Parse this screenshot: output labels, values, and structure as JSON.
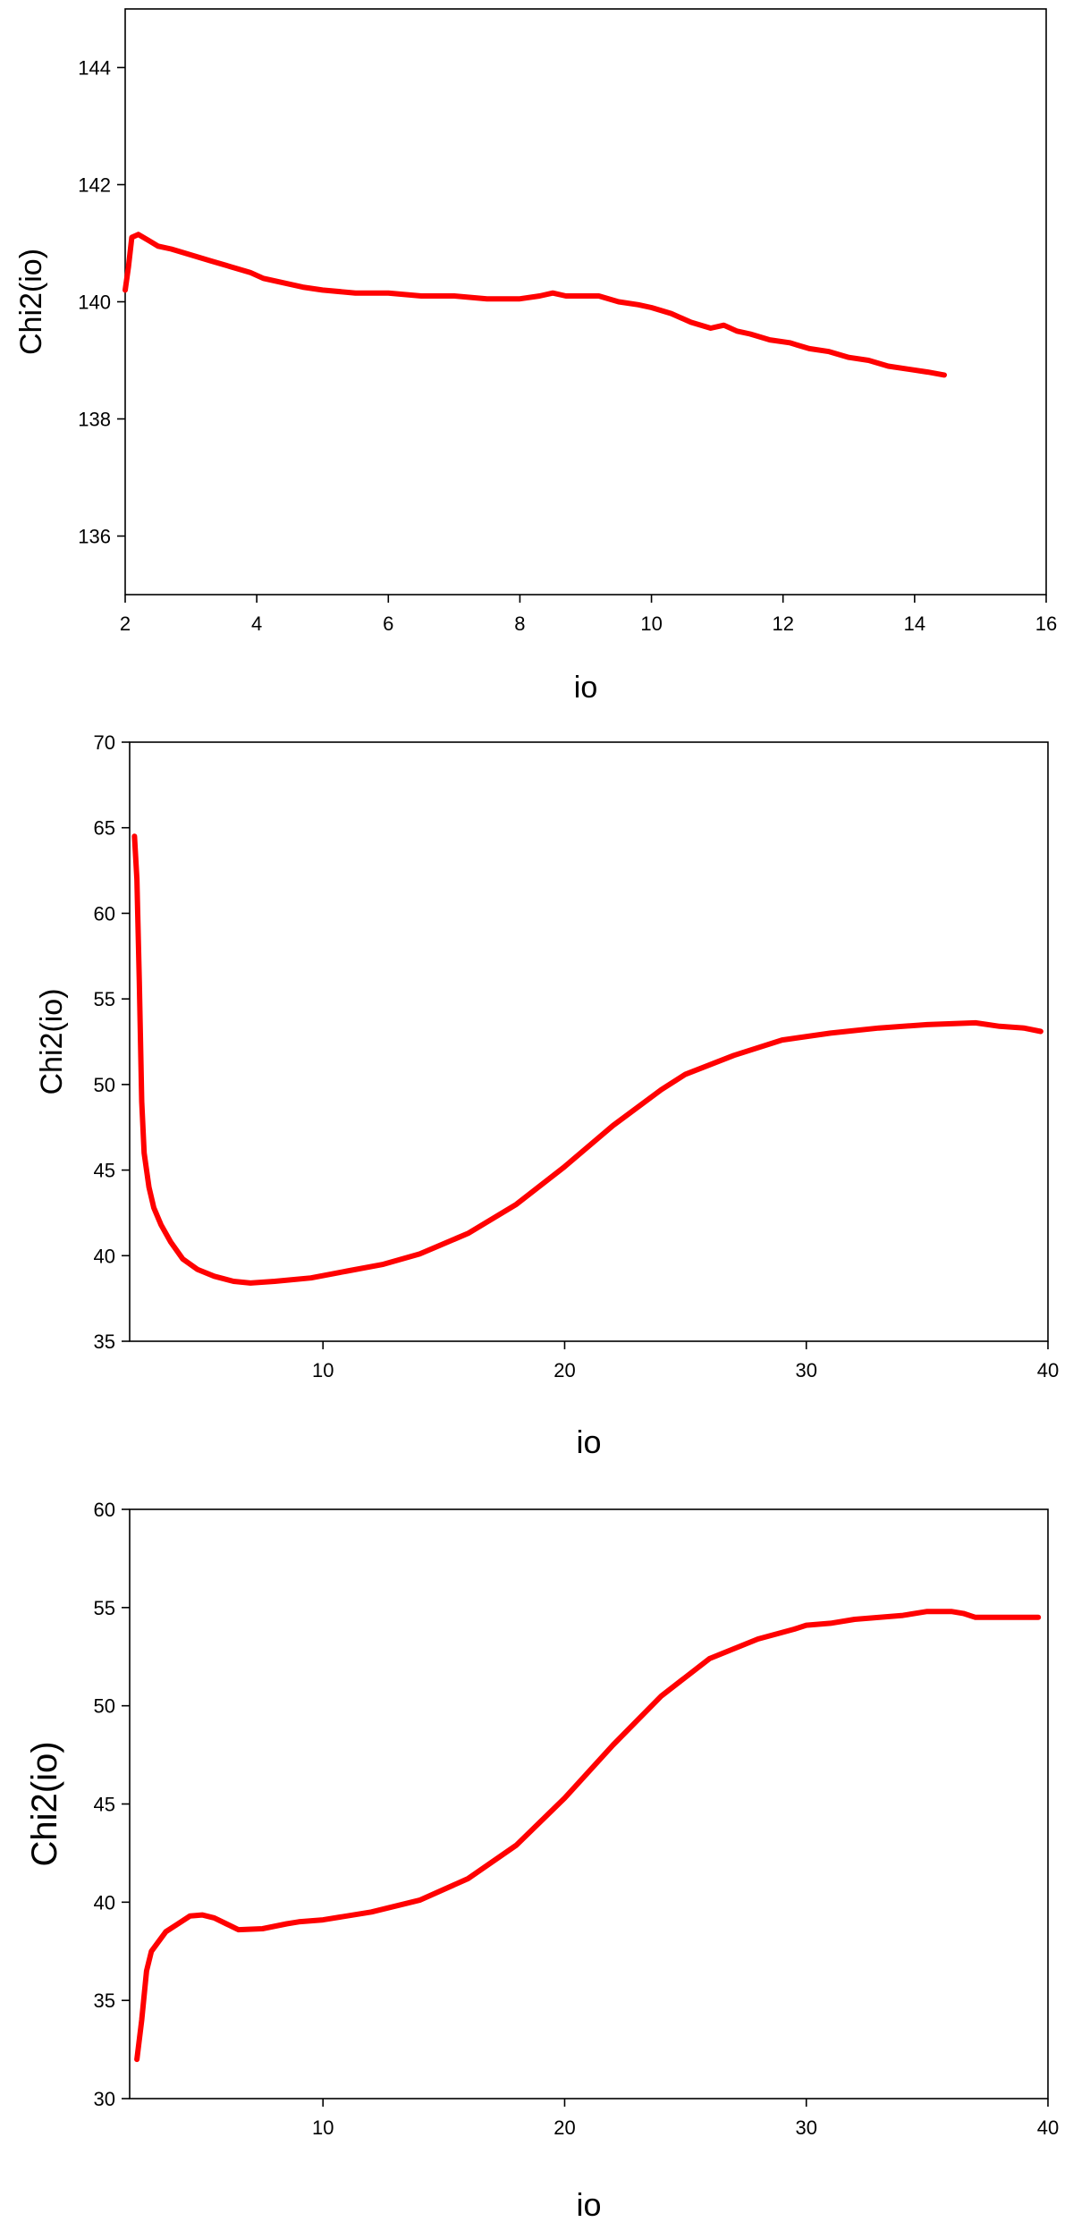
{
  "chart_data": [
    {
      "type": "line",
      "xlabel": "io",
      "ylabel": "Chi2(io)",
      "xlim": [
        2,
        16
      ],
      "ylim": [
        135,
        145
      ],
      "xticks": [
        2,
        4,
        6,
        8,
        10,
        12,
        14,
        16
      ],
      "yticks": [
        136,
        138,
        140,
        142,
        144
      ],
      "grid": false,
      "line_color": "#ff0000",
      "series": [
        {
          "x": [
            2.0,
            2.05,
            2.1,
            2.2,
            2.35,
            2.5,
            2.7,
            3.0,
            3.3,
            3.6,
            3.9,
            4.1,
            4.3,
            4.5,
            4.7,
            5.0,
            5.5,
            6.0,
            6.5,
            7.0,
            7.5,
            8.0,
            8.3,
            8.5,
            8.7,
            9.0,
            9.2,
            9.5,
            9.8,
            10.0,
            10.3,
            10.6,
            10.9,
            11.1,
            11.3,
            11.5,
            11.8,
            12.1,
            12.4,
            12.7,
            13.0,
            13.3,
            13.6,
            13.9,
            14.2,
            14.45
          ],
          "y": [
            140.2,
            140.6,
            141.1,
            141.15,
            141.05,
            140.95,
            140.9,
            140.8,
            140.7,
            140.6,
            140.5,
            140.4,
            140.35,
            140.3,
            140.25,
            140.2,
            140.15,
            140.15,
            140.1,
            140.1,
            140.05,
            140.05,
            140.1,
            140.15,
            140.1,
            140.1,
            140.1,
            140.0,
            139.95,
            139.9,
            139.8,
            139.65,
            139.55,
            139.6,
            139.5,
            139.45,
            139.35,
            139.3,
            139.2,
            139.15,
            139.05,
            139.0,
            138.9,
            138.85,
            138.8,
            138.75
          ]
        }
      ]
    },
    {
      "type": "line",
      "xlabel": "io",
      "ylabel": "Chi2(io)",
      "xlim": [
        2,
        40
      ],
      "ylim": [
        35,
        70
      ],
      "xticks": [
        10,
        20,
        30,
        40
      ],
      "yticks": [
        35,
        40,
        45,
        50,
        55,
        60,
        65,
        70
      ],
      "grid": false,
      "line_color": "#ff0000",
      "series": [
        {
          "x": [
            2.2,
            2.3,
            2.4,
            2.5,
            2.6,
            2.8,
            3.0,
            3.3,
            3.7,
            4.2,
            4.8,
            5.5,
            6.3,
            7.0,
            8.0,
            9.5,
            11.0,
            12.5,
            14.0,
            16.0,
            18.0,
            20.0,
            22.0,
            24.0,
            25.0,
            27.0,
            29.0,
            31.0,
            33.0,
            35.0,
            37.0,
            38.0,
            39.0,
            39.7
          ],
          "y": [
            64.5,
            62.0,
            56.0,
            49.0,
            46.0,
            44.0,
            42.8,
            41.8,
            40.8,
            39.8,
            39.2,
            38.8,
            38.5,
            38.4,
            38.5,
            38.7,
            39.1,
            39.5,
            40.1,
            41.3,
            43.0,
            45.2,
            47.6,
            49.7,
            50.6,
            51.7,
            52.6,
            53.0,
            53.3,
            53.5,
            53.6,
            53.4,
            53.3,
            53.1
          ]
        }
      ]
    },
    {
      "type": "line",
      "xlabel": "io",
      "ylabel": "Chi2(io)",
      "xlim": [
        2,
        40
      ],
      "ylim": [
        30,
        60
      ],
      "xticks": [
        10,
        20,
        30,
        40
      ],
      "yticks": [
        30,
        35,
        40,
        45,
        50,
        55,
        60
      ],
      "grid": false,
      "line_color": "#ff0000",
      "series": [
        {
          "x": [
            2.3,
            2.5,
            2.7,
            2.9,
            3.2,
            3.5,
            4.0,
            4.5,
            5.0,
            5.5,
            6.0,
            6.5,
            7.5,
            8.5,
            9.0,
            10.0,
            12.0,
            14.0,
            16.0,
            18.0,
            20.0,
            22.0,
            24.0,
            26.0,
            28.0,
            29.5,
            30.0,
            31.0,
            32.0,
            34.0,
            35.0,
            36.0,
            36.5,
            37.0,
            38.0,
            39.6
          ],
          "y": [
            32.0,
            34.0,
            36.5,
            37.5,
            38.0,
            38.5,
            38.9,
            39.3,
            39.35,
            39.2,
            38.9,
            38.6,
            38.65,
            38.9,
            39.0,
            39.1,
            39.5,
            40.1,
            41.2,
            42.9,
            45.3,
            48.0,
            50.5,
            52.4,
            53.4,
            53.9,
            54.1,
            54.2,
            54.4,
            54.6,
            54.8,
            54.8,
            54.7,
            54.5,
            54.5,
            54.5
          ]
        }
      ]
    }
  ]
}
